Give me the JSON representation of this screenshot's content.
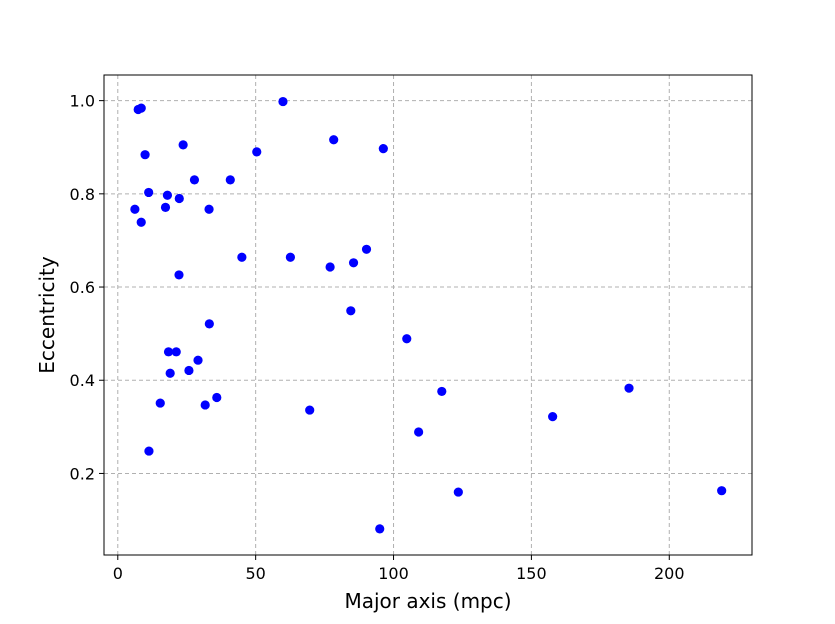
{
  "chart_data": {
    "type": "scatter",
    "title": "",
    "xlabel": "Major axis (mpc)",
    "ylabel": "Eccentricity",
    "xlim": [
      -5,
      230
    ],
    "ylim": [
      0.025,
      1.055
    ],
    "xticks": [
      0,
      50,
      100,
      150,
      200
    ],
    "yticks": [
      0.2,
      0.4,
      0.6,
      0.8,
      1.0
    ],
    "xtick_labels": [
      "0",
      "50",
      "100",
      "150",
      "200"
    ],
    "ytick_labels": [
      "0.2",
      "0.4",
      "0.6",
      "0.8",
      "1.0"
    ],
    "grid": true,
    "marker_color": "#0000ff",
    "x": [
      7.4,
      8.5,
      6.2,
      8.5,
      9.9,
      11.2,
      11.3,
      15.4,
      17.3,
      18.0,
      18.4,
      19.0,
      21.2,
      22.2,
      22.3,
      23.7,
      25.8,
      27.8,
      29.1,
      31.7,
      33.1,
      33.2,
      35.9,
      40.8,
      45.0,
      50.4,
      59.9,
      62.6,
      69.6,
      77.0,
      78.3,
      84.5,
      85.5,
      90.2,
      95.0,
      96.3,
      104.8,
      109.1,
      117.5,
      123.5,
      157.7,
      185.4,
      219.0
    ],
    "y": [
      0.981,
      0.984,
      0.767,
      0.739,
      0.884,
      0.803,
      0.248,
      0.351,
      0.771,
      0.797,
      0.461,
      0.415,
      0.461,
      0.626,
      0.79,
      0.905,
      0.421,
      0.83,
      0.443,
      0.347,
      0.767,
      0.521,
      0.363,
      0.83,
      0.664,
      0.89,
      0.998,
      0.664,
      0.336,
      0.643,
      0.916,
      0.549,
      0.652,
      0.681,
      0.081,
      0.897,
      0.489,
      0.289,
      0.376,
      0.16,
      0.322,
      0.383,
      0.163
    ]
  }
}
